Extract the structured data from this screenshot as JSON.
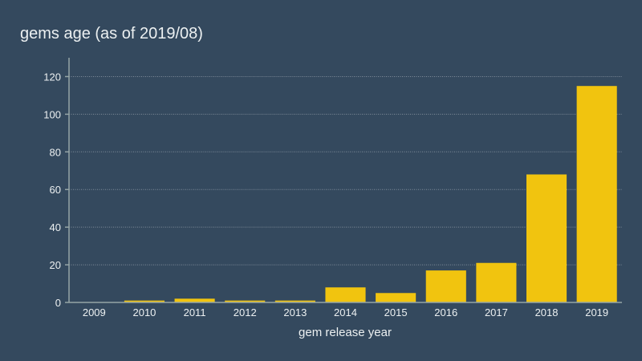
{
  "chart_data": {
    "type": "bar",
    "title": "gems age (as of 2019/08)",
    "xlabel": "gem release year",
    "ylabel": "",
    "categories": [
      "2009",
      "2010",
      "2011",
      "2012",
      "2013",
      "2014",
      "2015",
      "2016",
      "2017",
      "2018",
      "2019"
    ],
    "values": [
      0,
      1,
      2,
      1,
      1,
      8,
      5,
      17,
      21,
      68,
      115
    ],
    "yticks": [
      0,
      20,
      40,
      60,
      80,
      100,
      120
    ],
    "ylim": [
      0,
      130
    ],
    "grid": true,
    "legend": "none",
    "bar_color": "#f1c40f",
    "background_color": "#34495e"
  }
}
